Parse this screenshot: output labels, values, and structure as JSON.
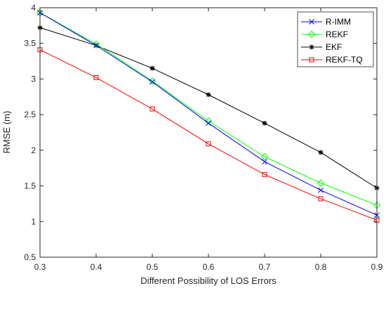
{
  "chart_data": {
    "type": "line",
    "xlabel": "Different Possibility of LOS Errors",
    "ylabel": "RMSE (m)",
    "xlim": [
      0.3,
      0.9
    ],
    "ylim": [
      0.5,
      4
    ],
    "x_ticks": [
      "0.3",
      "0.4",
      "0.5",
      "0.6",
      "0.7",
      "0.8",
      "0.9"
    ],
    "y_ticks": [
      "0.5",
      "1",
      "1.5",
      "2",
      "2.5",
      "3",
      "3.5",
      "4"
    ],
    "grid": false,
    "legend_position": "top-right",
    "x": [
      0.3,
      0.4,
      0.5,
      0.6,
      0.7,
      0.8,
      0.9
    ],
    "series": [
      {
        "name": "R-IMM",
        "color": "#0000ff",
        "marker": "x",
        "values": [
          3.93,
          3.47,
          2.96,
          2.38,
          1.84,
          1.44,
          1.09
        ]
      },
      {
        "name": "REKF",
        "color": "#00ff00",
        "marker": "diamond",
        "values": [
          3.93,
          3.49,
          2.97,
          2.41,
          1.91,
          1.54,
          1.23
        ]
      },
      {
        "name": "EKF",
        "color": "#000000",
        "marker": "asterisk",
        "values": [
          3.72,
          3.47,
          3.15,
          2.78,
          2.38,
          1.97,
          1.47
        ]
      },
      {
        "name": "REKF-TQ",
        "color": "#ff0000",
        "marker": "square",
        "values": [
          3.41,
          3.02,
          2.58,
          2.09,
          1.66,
          1.32,
          1.02
        ]
      }
    ]
  }
}
